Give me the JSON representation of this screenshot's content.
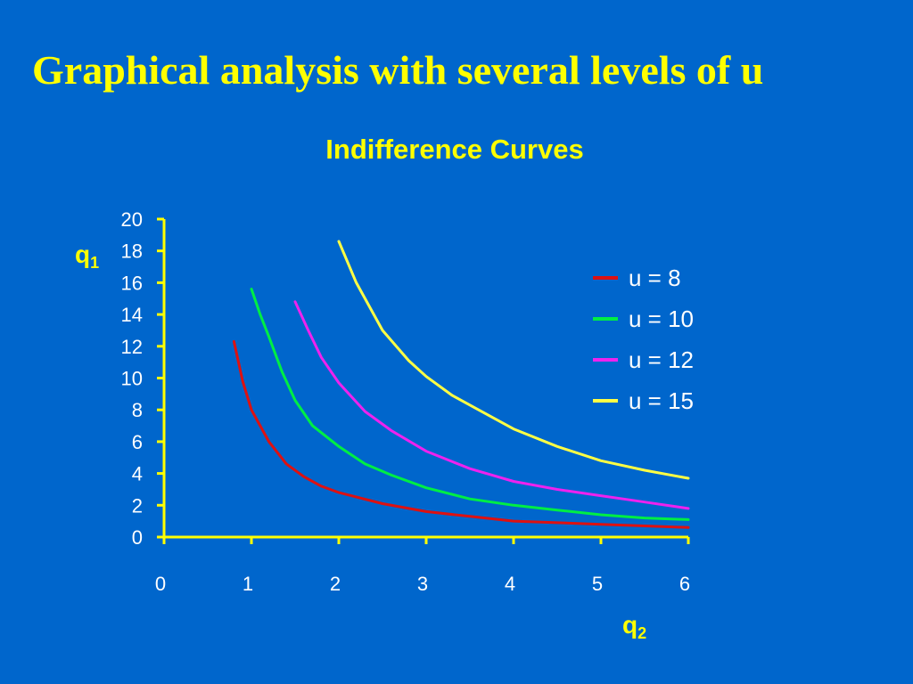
{
  "slide": {
    "title": "Graphical analysis with several levels of u"
  },
  "chart_data": {
    "type": "line",
    "title": "Indifference Curves",
    "ylabel_main": "q",
    "ylabel_sub": "1",
    "xlabel_main": "q",
    "xlabel_sub": "2",
    "xlim": [
      0,
      6
    ],
    "ylim": [
      0,
      20
    ],
    "x_ticks": [
      "0",
      "1",
      "2",
      "3",
      "4",
      "5",
      "6"
    ],
    "y_ticks": [
      "0",
      "2",
      "4",
      "6",
      "8",
      "10",
      "12",
      "14",
      "16",
      "18",
      "20"
    ],
    "grid": false,
    "legend_position": "right",
    "series": [
      {
        "name": "u = 8",
        "color": "#dd1111",
        "x": [
          0.8,
          0.9,
          1.0,
          1.2,
          1.4,
          1.6,
          1.8,
          2.0,
          2.5,
          3.0,
          3.5,
          4.0,
          4.5,
          5.0,
          5.5,
          6.0
        ],
        "y": [
          12.3,
          9.8,
          8.0,
          6.0,
          4.6,
          3.8,
          3.2,
          2.8,
          2.1,
          1.6,
          1.3,
          1.0,
          0.9,
          0.8,
          0.7,
          0.6
        ]
      },
      {
        "name": "u = 10",
        "color": "#00ee44",
        "x": [
          1.0,
          1.1,
          1.2,
          1.35,
          1.5,
          1.7,
          2.0,
          2.3,
          2.6,
          3.0,
          3.5,
          4.0,
          4.5,
          5.0,
          5.5,
          6.0
        ],
        "y": [
          15.6,
          14.0,
          12.6,
          10.4,
          8.6,
          7.0,
          5.7,
          4.6,
          3.9,
          3.1,
          2.4,
          2.0,
          1.7,
          1.4,
          1.2,
          1.1
        ]
      },
      {
        "name": "u = 12",
        "color": "#ee22ee",
        "x": [
          1.5,
          1.65,
          1.8,
          2.0,
          2.3,
          2.6,
          3.0,
          3.5,
          4.0,
          4.5,
          5.0,
          5.5,
          6.0
        ],
        "y": [
          14.8,
          13.0,
          11.3,
          9.7,
          7.9,
          6.7,
          5.4,
          4.3,
          3.5,
          3.0,
          2.6,
          2.2,
          1.8
        ]
      },
      {
        "name": "u = 15",
        "color": "#ffff44",
        "x": [
          2.0,
          2.2,
          2.5,
          2.8,
          3.0,
          3.3,
          3.6,
          4.0,
          4.5,
          5.0,
          5.5,
          6.0
        ],
        "y": [
          18.6,
          16.0,
          13.0,
          11.1,
          10.1,
          8.9,
          8.0,
          6.8,
          5.7,
          4.8,
          4.2,
          3.7
        ]
      }
    ]
  }
}
